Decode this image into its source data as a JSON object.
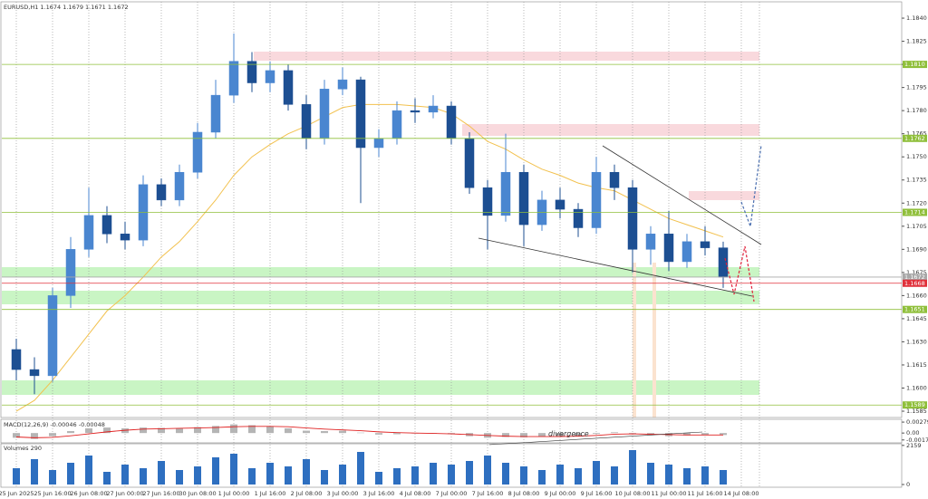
{
  "chart_data": {
    "type": "candlestick",
    "title": "EURUSD,H1  1.1674 1.1679 1.1671 1.1672",
    "categories": [
      "25 Jun 2025",
      null,
      "25 Jun 16:00",
      null,
      "26 Jun 08:00",
      null,
      "27 Jun 00:00",
      null,
      "27 Jun 16:00",
      null,
      "30 Jun 08:00",
      null,
      "1 Jul 00:00",
      null,
      "1 Jul 16:00",
      null,
      "2 Jul 08:00",
      null,
      "3 Jul 00:00",
      null,
      "3 Jul 16:00",
      null,
      "4 Jul 08:00",
      null,
      "7 Jul 00:00",
      null,
      "7 Jul 16:00",
      null,
      "8 Jul 08:00",
      null,
      "9 Jul 00:00",
      null,
      "9 Jul 16:00",
      null,
      "10 Jul 08:00",
      null,
      "11 Jul 00:00",
      null,
      "11 Jul 16:00",
      null,
      "14 Jul 08:00"
    ],
    "open": [
      1.1625,
      1.1612,
      1.1608,
      1.166,
      1.169,
      1.1712,
      1.17,
      1.1696,
      1.1732,
      1.1722,
      1.174,
      1.1766,
      1.179,
      1.1812,
      1.1798,
      1.1806,
      1.1784,
      1.1762,
      1.1794,
      1.18,
      1.1756,
      1.1762,
      1.178,
      1.1779,
      1.1783,
      1.1762,
      1.173,
      1.1712,
      1.174,
      1.1706,
      1.1722,
      1.1716,
      1.1704,
      1.174,
      1.173,
      1.169,
      1.17,
      1.1682,
      1.1695,
      1.1691,
      null
    ],
    "high": [
      1.1632,
      1.162,
      1.1665,
      1.1698,
      1.173,
      1.1718,
      1.1708,
      1.1738,
      1.1736,
      1.1745,
      1.1772,
      1.18,
      1.183,
      1.1818,
      1.1812,
      1.181,
      1.179,
      1.18,
      1.1808,
      1.1802,
      1.1768,
      1.1786,
      1.1788,
      1.179,
      1.1786,
      1.1766,
      1.1735,
      1.1765,
      1.1745,
      1.1728,
      1.173,
      1.172,
      1.175,
      1.1745,
      1.1735,
      1.1705,
      1.1715,
      1.17,
      1.1705,
      1.1695,
      null
    ],
    "low": [
      1.1605,
      1.1596,
      1.1604,
      1.1652,
      1.1685,
      1.1694,
      1.169,
      1.1692,
      1.1718,
      1.1718,
      1.1736,
      1.1762,
      1.1785,
      1.1792,
      1.1792,
      1.178,
      1.1755,
      1.1758,
      1.179,
      1.172,
      1.175,
      1.1758,
      1.1772,
      1.1775,
      1.1758,
      1.1726,
      1.169,
      1.1708,
      1.1692,
      1.1702,
      1.171,
      1.1698,
      1.17,
      1.1722,
      1.1675,
      1.168,
      1.1676,
      1.1678,
      1.1686,
      1.1665,
      null
    ],
    "close": [
      1.1612,
      1.1608,
      1.166,
      1.169,
      1.1712,
      1.17,
      1.1696,
      1.1732,
      1.1722,
      1.174,
      1.1766,
      1.179,
      1.1812,
      1.1798,
      1.1806,
      1.1784,
      1.1762,
      1.1794,
      1.18,
      1.1756,
      1.1762,
      1.178,
      1.1779,
      1.1783,
      1.1762,
      1.173,
      1.1712,
      1.174,
      1.1706,
      1.1722,
      1.1716,
      1.1704,
      1.174,
      1.173,
      1.169,
      1.17,
      1.1682,
      1.1695,
      1.1691,
      1.1672,
      null
    ],
    "up_color": "#4a86d0",
    "down_color": "#1d4f92",
    "moving_average": {
      "color": "#f2c14e",
      "values": [
        1.1585,
        1.1592,
        1.1605,
        1.162,
        1.1635,
        1.165,
        1.166,
        1.1672,
        1.1685,
        1.1695,
        1.1708,
        1.1722,
        1.1738,
        1.175,
        1.1758,
        1.1765,
        1.177,
        1.1776,
        1.1782,
        1.1784,
        1.1784,
        1.1784,
        1.1783,
        1.1782,
        1.1778,
        1.177,
        1.176,
        1.1755,
        1.1748,
        1.1742,
        1.1738,
        1.1733,
        1.173,
        1.1728,
        1.1722,
        1.1716,
        1.171,
        1.1706,
        1.1702,
        1.1698,
        null
      ]
    },
    "ylim": [
      1.15809,
      1.18506
    ],
    "yticks": [
      {
        "value": 1.184,
        "label": "1.1840"
      },
      {
        "value": 1.1825,
        "label": "1.1825"
      },
      {
        "value": 1.181,
        "label": "1.1810"
      },
      {
        "value": 1.1795,
        "label": "1.1795"
      },
      {
        "value": 1.178,
        "label": "1.1780"
      },
      {
        "value": 1.1765,
        "label": "1.1765"
      },
      {
        "value": 1.175,
        "label": "1.1750"
      },
      {
        "value": 1.1735,
        "label": "1.1735"
      },
      {
        "value": 1.172,
        "label": "1.1720"
      },
      {
        "value": 1.1705,
        "label": "1.1705"
      },
      {
        "value": 1.169,
        "label": "1.1690"
      },
      {
        "value": 1.1675,
        "label": "1.1675"
      },
      {
        "value": 1.166,
        "label": "1.1660"
      },
      {
        "value": 1.1645,
        "label": "1.1645"
      },
      {
        "value": 1.163,
        "label": "1.1630"
      },
      {
        "value": 1.1615,
        "label": "1.1615"
      },
      {
        "value": 1.16,
        "label": "1.1600"
      },
      {
        "value": 1.1585,
        "label": "1.1585"
      }
    ],
    "levels": [
      {
        "value": 1.181,
        "label": "1.1810",
        "color": "#8fbf3a"
      },
      {
        "value": 1.1762,
        "label": "1.1762",
        "color": "#8fbf3a"
      },
      {
        "value": 1.1714,
        "label": "1.1714",
        "color": "#8fbf3a"
      },
      {
        "value": 1.1651,
        "label": "1.1651",
        "color": "#8fbf3a"
      },
      {
        "value": 1.1589,
        "label": "1.1589",
        "color": "#8fbf3a"
      },
      {
        "value": 1.1672,
        "label": "1.1672",
        "color": "#a8a8a8"
      },
      {
        "value": 1.1668,
        "label": "1.1668",
        "color": "#e0303a"
      }
    ],
    "grid": true,
    "annotation": "divergence",
    "macd": {
      "title": "MACD(12,26,9) -0.00046 -0.00048",
      "color": "#b5b5b5",
      "signal_color": "#e02020",
      "histogram": [
        -0.0012,
        -0.0015,
        -0.0008,
        0.0005,
        0.0012,
        0.0014,
        0.0012,
        0.0014,
        0.0013,
        0.0012,
        0.0015,
        0.0018,
        0.0022,
        0.002,
        0.0017,
        0.0012,
        0.0006,
        0.0005,
        0.0006,
        0.0001,
        -0.0004,
        -0.0003,
        -0.0001,
        0,
        -0.0003,
        -0.0008,
        -0.0012,
        -0.001,
        -0.0011,
        -0.0009,
        -0.0008,
        -0.0008,
        -0.0002,
        0.0002,
        -0.0002,
        -0.0005,
        -0.0008,
        -0.0006,
        -0.0005,
        -0.0005,
        null
      ],
      "signal": [
        -0.001,
        -0.0012,
        -0.0011,
        -0.0007,
        -0.0002,
        0.0003,
        0.0007,
        0.001,
        0.0011,
        0.0012,
        0.0013,
        0.0014,
        0.0016,
        0.0017,
        0.0017,
        0.0016,
        0.0013,
        0.001,
        0.0008,
        0.0006,
        0.0003,
        0.0001,
        0,
        -0.0001,
        -0.0002,
        -0.0004,
        -0.0006,
        -0.0008,
        -0.0009,
        -0.0009,
        -0.0009,
        -0.0008,
        -0.0006,
        -0.0003,
        -0.0002,
        -0.0003,
        -0.0004,
        -0.0005,
        -0.0005,
        -0.0005,
        null
      ],
      "ylim": [
        -0.0025,
        0.0035
      ],
      "yticks": [
        0.00279,
        {
          "value": 0,
          "label": "0.00"
        },
        -0.00176
      ]
    },
    "volume": {
      "title": "Volumes 290",
      "color": "#2e6fc0",
      "values": [
        900,
        1400,
        800,
        1200,
        1600,
        700,
        1100,
        900,
        1300,
        800,
        1000,
        1500,
        1700,
        900,
        1200,
        1000,
        1400,
        800,
        1100,
        1800,
        700,
        900,
        1000,
        1200,
        1100,
        1300,
        1600,
        1200,
        1000,
        800,
        1100,
        900,
        1300,
        1000,
        1900,
        1200,
        1100,
        900,
        1000,
        800,
        null
      ],
      "ylim": [
        -150,
        2250
      ],
      "yticks": [
        2159,
        0
      ]
    }
  }
}
